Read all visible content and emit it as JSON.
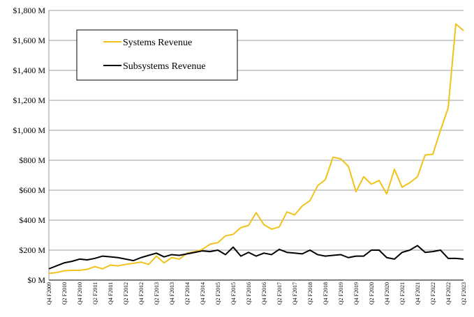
{
  "chart_data": {
    "type": "line",
    "title": "",
    "xlabel": "",
    "ylabel": "",
    "ylim": [
      0,
      1800
    ],
    "y_ticks": [
      0,
      200,
      400,
      600,
      800,
      1000,
      1200,
      1400,
      1600,
      1800
    ],
    "y_tick_labels": [
      "$0 M",
      "$200 M",
      "$400 M",
      "$600 M",
      "$800 M",
      "$1,000 M",
      "$1,200 M",
      "$1,400 M",
      "$1,600 M",
      "$1,800 M"
    ],
    "grid": true,
    "legend": "top-left",
    "categories": [
      "Q4 F2009",
      "Q1 F2010",
      "Q2 F2010",
      "Q3 F2010",
      "Q4 F2010",
      "Q1 F2011",
      "Q2 F2011",
      "Q3 F2011",
      "Q4 F2011",
      "Q1 F2012",
      "Q2 F2012",
      "Q3 F2012",
      "Q4 F2012",
      "Q1 F2013",
      "Q2 F2013",
      "Q3 F2013",
      "Q4 F2013",
      "Q1 F2014",
      "Q2 F2014",
      "Q3 F2014",
      "Q4 F2014",
      "Q1 F2015",
      "Q2 F2015",
      "Q3 F2015",
      "Q4 F2015",
      "Q1 F2016",
      "Q2 F2016",
      "Q3 F2016",
      "Q4 F2016",
      "Q1 F2017",
      "Q2 F2017",
      "Q3 F2017",
      "Q4 F2017",
      "Q1 F2018",
      "Q2 F2018",
      "Q3 F2018",
      "Q4 F2018",
      "Q1 F2019",
      "Q2 F2019",
      "Q3 F2019",
      "Q4 F2019",
      "Q1 F2020",
      "Q2 F2020",
      "Q3 F2020",
      "Q4 F2020",
      "Q1 F2021",
      "Q2 F2021",
      "Q3 F2021",
      "Q4 F2021",
      "Q1 F2022",
      "Q2 F2022",
      "Q3 F2022",
      "Q4 F2022",
      "Q1 F2023",
      "Q2 F2023"
    ],
    "visible_category_labels": [
      "Q4 F2009",
      "Q2 F2010",
      "Q4 F2010",
      "Q2 F2011",
      "Q4 F2011",
      "Q2 F2012",
      "Q4 F2012",
      "Q2 F2013",
      "Q4 F2013",
      "Q2 F2014",
      "Q4 F2014",
      "Q2 F2015",
      "Q4 F2015",
      "Q2 F2016",
      "Q4 F2016",
      "Q2 F2017",
      "Q4 F2017",
      "Q2 F2018",
      "Q4 F2018",
      "Q2 F2019",
      "Q4 F2019",
      "Q2 F2020",
      "Q4 F2020",
      "Q2 F2021",
      "Q4 F2021",
      "Q2 F2022",
      "Q4 F2022",
      "Q2 F2023"
    ],
    "series": [
      {
        "name": "Systems Revenue",
        "color": "#f2c21b",
        "values": [
          45,
          50,
          62,
          65,
          65,
          72,
          90,
          75,
          100,
          95,
          105,
          112,
          120,
          105,
          160,
          115,
          150,
          140,
          180,
          190,
          205,
          240,
          250,
          295,
          305,
          350,
          365,
          450,
          370,
          340,
          355,
          455,
          435,
          495,
          530,
          630,
          670,
          820,
          810,
          760,
          590,
          690,
          640,
          665,
          575,
          740,
          620,
          650,
          690,
          835,
          840,
          1000,
          1150,
          1710,
          1665
        ]
      },
      {
        "name": "Subsystems Revenue",
        "color": "#000000",
        "values": [
          75,
          95,
          115,
          125,
          140,
          135,
          145,
          160,
          155,
          150,
          140,
          130,
          150,
          165,
          180,
          155,
          170,
          165,
          175,
          185,
          195,
          190,
          200,
          170,
          220,
          160,
          185,
          160,
          180,
          170,
          205,
          185,
          180,
          175,
          200,
          170,
          160,
          165,
          170,
          150,
          160,
          160,
          200,
          200,
          150,
          140,
          185,
          200,
          230,
          185,
          190,
          200,
          145,
          145,
          140
        ]
      }
    ]
  }
}
